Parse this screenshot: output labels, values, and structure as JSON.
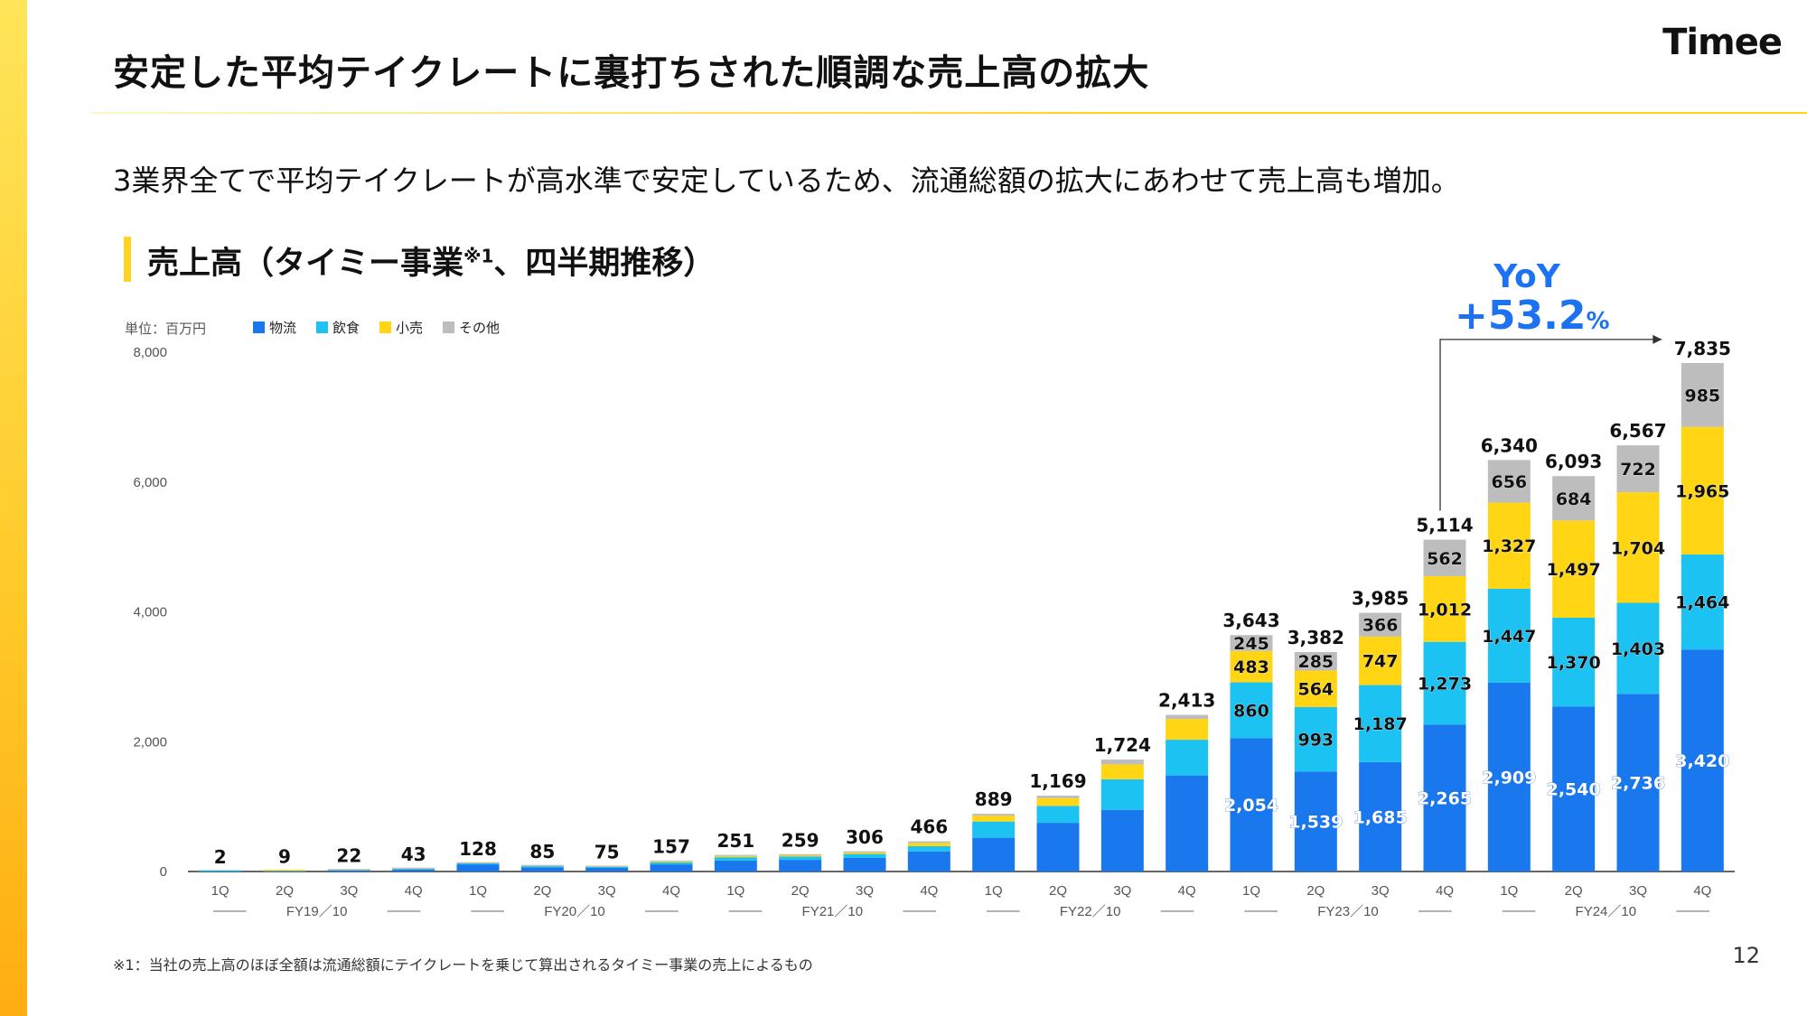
{
  "header": {
    "title": "安定した平均テイクレートに裏打ちされた順調な売上高の拡大",
    "logo": "Timee"
  },
  "subtitle": "3業界全てで平均テイクレートが高水準で安定しているため、流通総額の拡大にあわせて売上高も増加。",
  "chart_title": "売上高（タイミー事業",
  "chart_title_sup": "※1",
  "chart_title_suffix": "、四半期推移）",
  "unit_label": "単位：百万円",
  "yoy": {
    "label": "YoY",
    "value": "+53.2",
    "pct": "%"
  },
  "footnote": "※1：当社の売上高のほぼ全額は流通総額にテイクレートを乗じて算出されるタイミー事業の売上によるもの",
  "page_number": "12",
  "colors": {
    "logistics": "#1a78ee",
    "food": "#1bc2f2",
    "retail": "#ffd514",
    "other": "#bdbdbd",
    "accent": "#ffd21e"
  },
  "chart_data": {
    "type": "bar",
    "stacked": true,
    "ylim": [
      0,
      8000
    ],
    "yticks": [
      0,
      2000,
      4000,
      6000,
      8000
    ],
    "ytick_labels": [
      "0",
      "2,000",
      "4,000",
      "6,000",
      "8,000"
    ],
    "categories": [
      "1Q",
      "2Q",
      "3Q",
      "4Q",
      "1Q",
      "2Q",
      "3Q",
      "4Q",
      "1Q",
      "2Q",
      "3Q",
      "4Q",
      "1Q",
      "2Q",
      "3Q",
      "4Q",
      "1Q",
      "2Q",
      "3Q",
      "4Q",
      "1Q",
      "2Q",
      "3Q",
      "4Q"
    ],
    "fiscal_years": [
      "FY19／10",
      "FY20／10",
      "FY21／10",
      "FY22／10",
      "FY23／10",
      "FY24／10"
    ],
    "series": [
      {
        "name": "物流",
        "color": "#1a78ee",
        "values": [
          1,
          5,
          14,
          30,
          110,
          65,
          55,
          110,
          170,
          180,
          210,
          310,
          520,
          750,
          950,
          1480,
          2054,
          1539,
          1685,
          2265,
          2909,
          2540,
          2736,
          3420
        ],
        "labels": [
          null,
          null,
          null,
          null,
          null,
          null,
          null,
          null,
          null,
          null,
          null,
          null,
          null,
          null,
          null,
          null,
          "2,054",
          "1,539",
          "1,685",
          "2,265",
          "2,909",
          "2,540",
          "2,736",
          "3,420"
        ]
      },
      {
        "name": "飲食",
        "color": "#1bc2f2",
        "values": [
          1,
          3,
          6,
          10,
          15,
          17,
          15,
          30,
          50,
          50,
          60,
          80,
          250,
          260,
          470,
          550,
          860,
          993,
          1187,
          1273,
          1447,
          1370,
          1403,
          1464
        ],
        "labels": [
          null,
          null,
          null,
          null,
          null,
          null,
          null,
          null,
          null,
          null,
          null,
          null,
          null,
          null,
          null,
          null,
          "860",
          "993",
          "1,187",
          "1,273",
          "1,447",
          "1,370",
          "1,403",
          "1,464"
        ]
      },
      {
        "name": "小売",
        "color": "#ffd514",
        "values": [
          0,
          1,
          1,
          2,
          2,
          2,
          3,
          12,
          20,
          20,
          25,
          50,
          90,
          120,
          230,
          320,
          483,
          564,
          747,
          1012,
          1327,
          1497,
          1704,
          1965
        ],
        "labels": [
          null,
          null,
          null,
          null,
          null,
          null,
          null,
          null,
          null,
          null,
          null,
          null,
          null,
          null,
          null,
          null,
          "483",
          "564",
          "747",
          "1,012",
          "1,327",
          "1,497",
          "1,704",
          "1,965"
        ]
      },
      {
        "name": "その他",
        "color": "#bdbdbd",
        "values": [
          0,
          0,
          1,
          1,
          1,
          1,
          2,
          5,
          11,
          9,
          11,
          26,
          29,
          39,
          74,
          63,
          245,
          285,
          366,
          562,
          656,
          684,
          722,
          985
        ],
        "labels": [
          null,
          null,
          null,
          null,
          null,
          null,
          null,
          null,
          null,
          null,
          null,
          null,
          null,
          null,
          null,
          null,
          "245",
          "285",
          "366",
          "562",
          "656",
          "684",
          "722",
          "985"
        ]
      }
    ],
    "totals": [
      2,
      9,
      22,
      43,
      128,
      85,
      75,
      157,
      251,
      259,
      306,
      466,
      889,
      1169,
      1724,
      2413,
      3643,
      3382,
      3985,
      5114,
      6340,
      6093,
      6567,
      7835
    ],
    "total_labels": [
      "2",
      "9",
      "22",
      "43",
      "128",
      "85",
      "75",
      "157",
      "251",
      "259",
      "306",
      "466",
      "889",
      "1,169",
      "1,724",
      "2,413",
      "3,643",
      "3,382",
      "3,985",
      "5,114",
      "6,340",
      "6,093",
      "6,567",
      "7,835"
    ],
    "yoy_arrow": {
      "from_index": 19,
      "to_index": 23
    }
  }
}
